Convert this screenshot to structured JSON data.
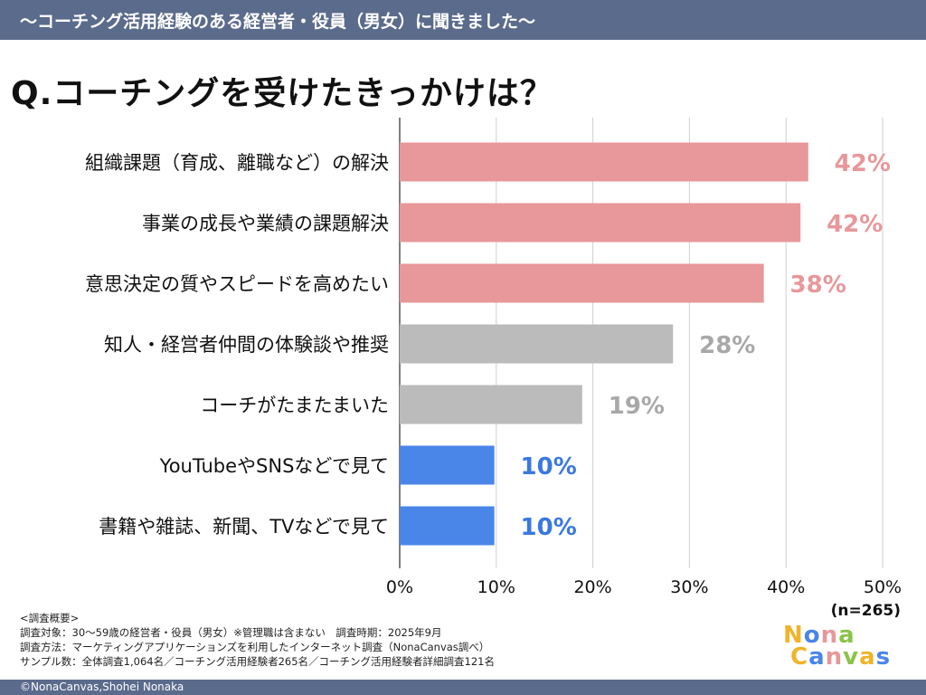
{
  "banner": {
    "title": "〜コーチング活用経験のある経営者・役員（男女）に聞きました〜"
  },
  "question": "Q.コーチングを受けたきっかけは？",
  "chart_data": {
    "type": "bar",
    "orientation": "horizontal",
    "categories": [
      "組織課題（育成、離職など）の解決",
      "事業の成長や業績の課題解決",
      "意思決定の質やスピードを高めたい",
      "知人・経営者仲間の体験談や推奨",
      "コーチがたまたまいた",
      "YouTubeやSNSなどで見て",
      "書籍や雑誌、新聞、TVなどで見て"
    ],
    "values": [
      42.3,
      41.5,
      37.7,
      28.3,
      18.9,
      9.8,
      9.8
    ],
    "value_labels": [
      "42%",
      "42%",
      "38%",
      "28%",
      "19%",
      "10%",
      "10%"
    ],
    "bar_colors": [
      "#e8979a",
      "#e8979a",
      "#e8979a",
      "#bbbbbb",
      "#bbbbbb",
      "#4a86e8",
      "#4a86e8"
    ],
    "label_colors": [
      "#e8979a",
      "#e8979a",
      "#e8979a",
      "#a8a8a8",
      "#a8a8a8",
      "#3a78e0",
      "#3a78e0"
    ],
    "xlim": [
      0,
      50
    ],
    "xticks": [
      0,
      10,
      20,
      30,
      40,
      50
    ],
    "xtick_labels": [
      "0%",
      "10%",
      "20%",
      "30%",
      "40%",
      "50%"
    ],
    "grid": true,
    "n_label": "(n=265)"
  },
  "survey": {
    "heading": "<調査概要>",
    "line1": "調査対象：30〜59歳の経営者・役員（男女）※管理職は含まない　調査時期：2025年9月",
    "line2": "調査方法：マーケティングアプリケーションズを利用したインターネット調査（NonaCanvas調べ）",
    "line3": "サンプル数：全体調査1,064名／コーチング活用経験者265名／コーチング活用経験者詳細調査121名"
  },
  "logo": {
    "line1": "Nona",
    "line2": "Canvas",
    "colors": [
      "#f0b429",
      "#4a86e8",
      "#e8979a",
      "#8bc34a"
    ]
  },
  "footer": {
    "copyright": "©NonaCanvas,Shohei Nonaka"
  }
}
